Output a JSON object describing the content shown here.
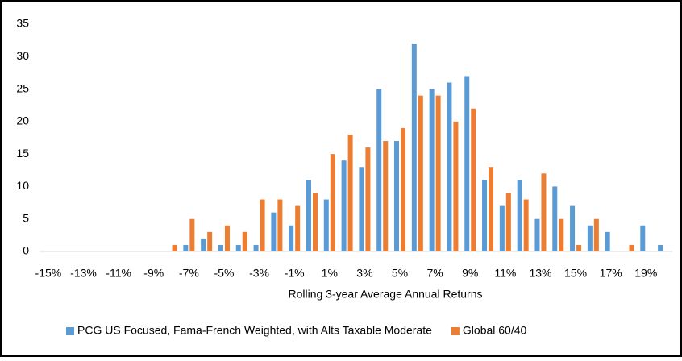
{
  "chart_data": {
    "type": "bar",
    "x_label": "Rolling 3-year Average Annual Returns",
    "categories": [
      "-15%",
      null,
      "-13%",
      null,
      "-11%",
      null,
      "-9%",
      null,
      "-7%",
      null,
      "-5%",
      null,
      "-3%",
      null,
      "-1%",
      null,
      "1%",
      null,
      "3%",
      null,
      "5%",
      null,
      "7%",
      null,
      "9%",
      null,
      "11%",
      null,
      "13%",
      null,
      "15%",
      null,
      "17%",
      null,
      "19%",
      null
    ],
    "series": [
      {
        "name": "PCG US Focused, Fama-French Weighted, with Alts Taxable Moderate",
        "color": "#5b9bd5",
        "values": [
          0,
          0,
          0,
          0,
          0,
          0,
          0,
          0,
          1,
          2,
          1,
          1,
          1,
          6,
          4,
          11,
          8,
          14,
          13,
          25,
          17,
          32,
          25,
          26,
          27,
          11,
          7,
          11,
          5,
          10,
          7,
          4,
          3,
          0,
          4,
          1
        ]
      },
      {
        "name": "Global 60/40",
        "color": "#ed7d31",
        "values": [
          0,
          0,
          0,
          0,
          0,
          0,
          0,
          1,
          5,
          3,
          4,
          3,
          8,
          8,
          7,
          9,
          15,
          18,
          16,
          17,
          19,
          24,
          24,
          20,
          22,
          13,
          9,
          8,
          12,
          5,
          1,
          5,
          0,
          1,
          0,
          0
        ]
      }
    ],
    "ylim": [
      0,
      35
    ],
    "yticks": [
      0,
      5,
      10,
      15,
      20,
      25,
      30,
      35
    ],
    "grid": false
  }
}
